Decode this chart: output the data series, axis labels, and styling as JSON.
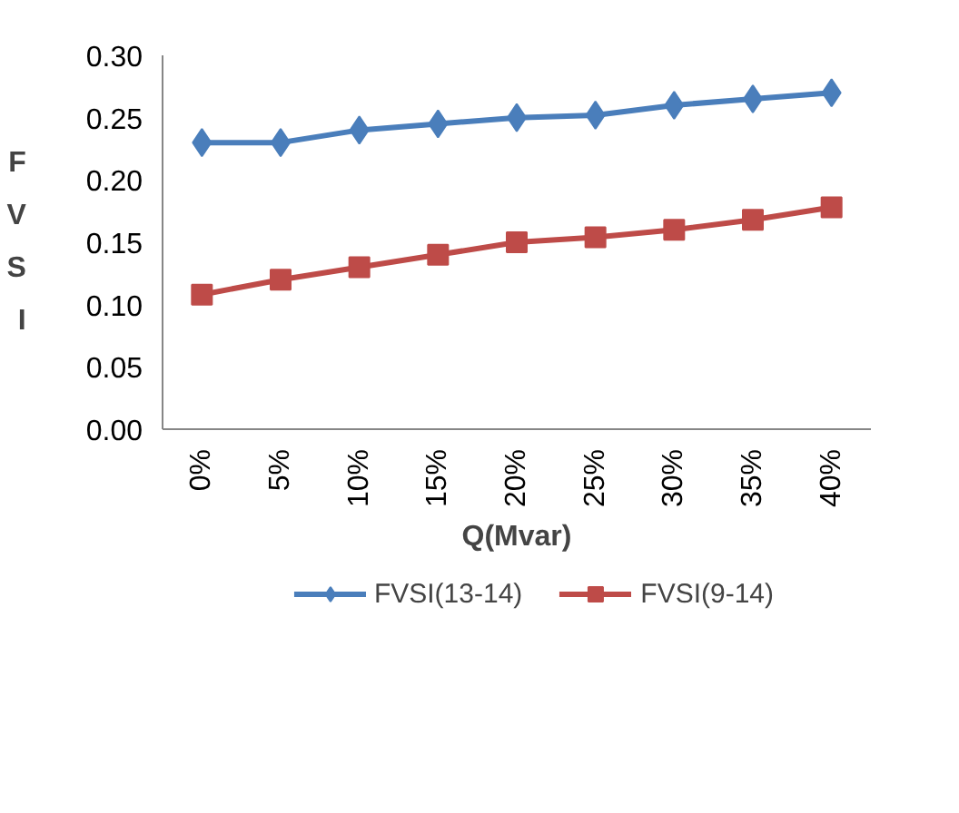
{
  "chart_data": {
    "type": "line",
    "xlabel": "Q(Mvar)",
    "ylabel": "FVSI",
    "categories": [
      "0%",
      "5%",
      "10%",
      "15%",
      "20%",
      "25%",
      "30%",
      "35%",
      "40%"
    ],
    "series": [
      {
        "name": "FVSI(13-14)",
        "color": "#4a7ebb",
        "marker": "diamond",
        "values": [
          0.23,
          0.23,
          0.24,
          0.245,
          0.25,
          0.252,
          0.26,
          0.265,
          0.27
        ]
      },
      {
        "name": "FVSI(9-14)",
        "color": "#be4b48",
        "marker": "square",
        "values": [
          0.108,
          0.12,
          0.13,
          0.14,
          0.15,
          0.154,
          0.16,
          0.168,
          0.178
        ]
      }
    ],
    "ylim": [
      0,
      0.3
    ],
    "yticks": [
      {
        "value": 0,
        "label": "0.00"
      },
      {
        "value": 0.05,
        "label": "0.05"
      },
      {
        "value": 0.1,
        "label": "0.10"
      },
      {
        "value": 0.15,
        "label": "0.15"
      },
      {
        "value": 0.2,
        "label": "0.20"
      },
      {
        "value": 0.25,
        "label": "0.25"
      },
      {
        "value": 0.3,
        "label": "0.30"
      }
    ],
    "grid": false,
    "legend": "bottom",
    "line_style": "solid"
  }
}
